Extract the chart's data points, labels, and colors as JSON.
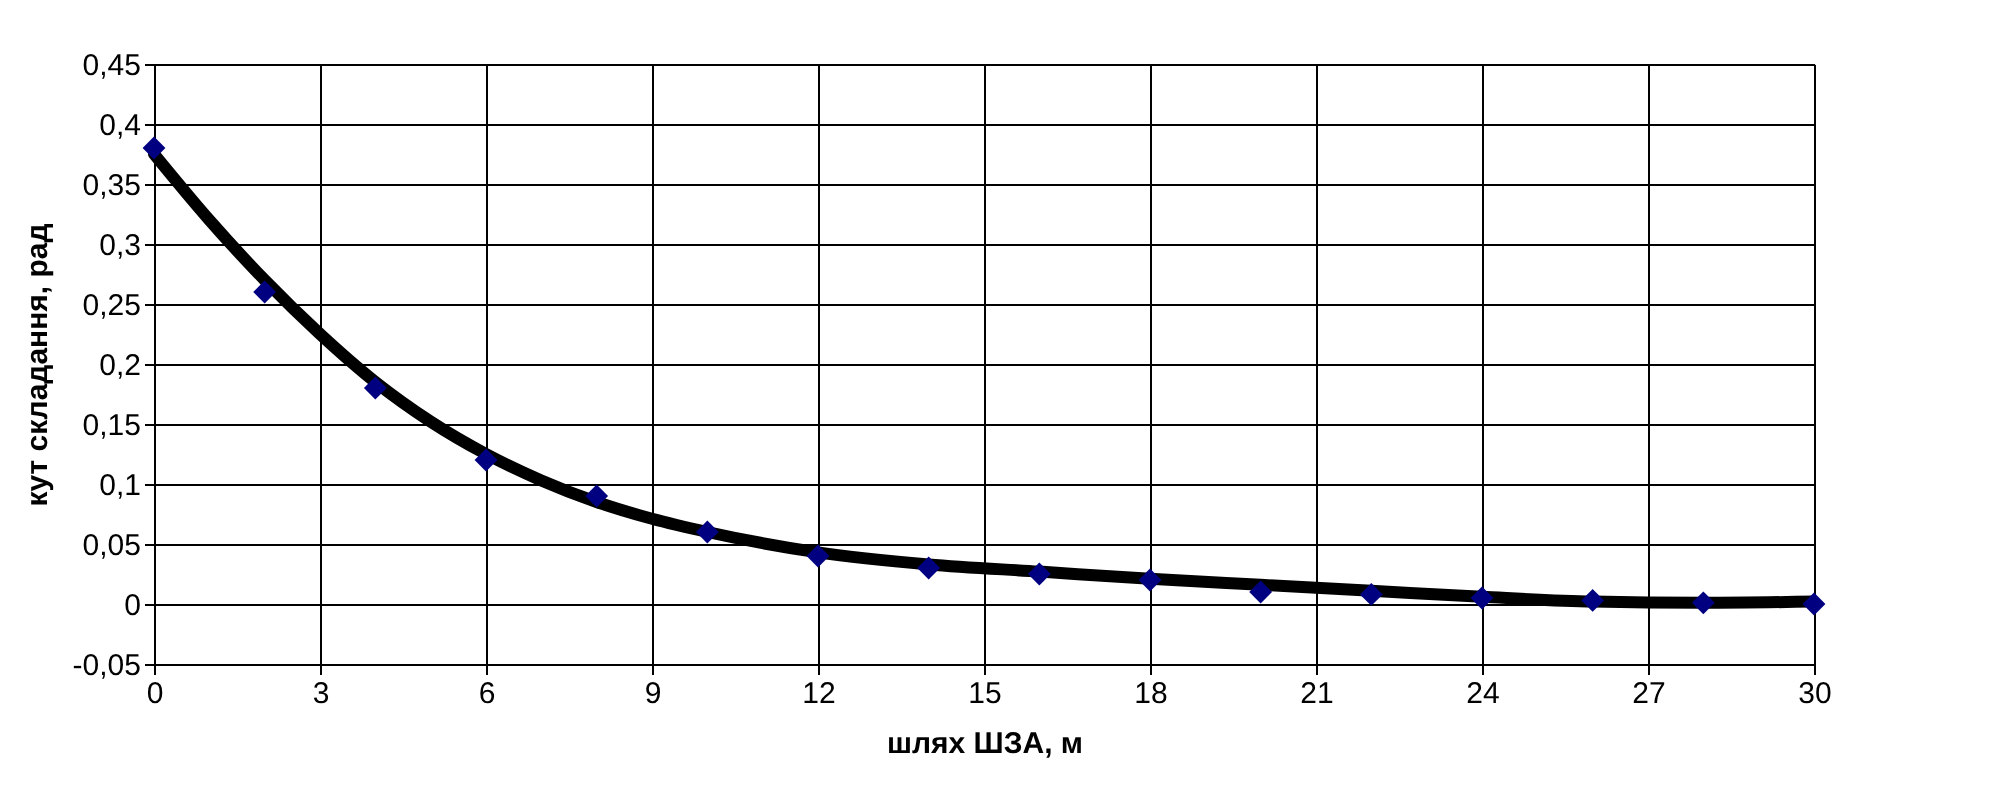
{
  "chart_data": {
    "type": "scatter",
    "xlabel": "шлях ШЗА, м",
    "ylabel": "кут складання, рад",
    "x": [
      0,
      2,
      4,
      6,
      8,
      10,
      12,
      14,
      16,
      18,
      20,
      22,
      24,
      26,
      28,
      30
    ],
    "series": [
      {
        "type": "scatter",
        "color": "#000080",
        "marker": "diamond",
        "values": [
          0.38,
          0.26,
          0.18,
          0.12,
          0.09,
          0.06,
          0.04,
          0.03,
          0.025,
          0.02,
          0.01,
          0.008,
          0.005,
          0.003,
          0.001,
          0.0
        ]
      },
      {
        "type": "line",
        "color": "#000000",
        "line_style": "solid",
        "x": [
          0,
          1,
          2,
          3,
          4,
          5,
          6,
          7,
          8,
          9,
          10,
          12,
          14,
          16,
          18,
          20,
          22,
          24,
          26,
          28,
          30
        ],
        "values": [
          0.375,
          0.32,
          0.27,
          0.225,
          0.185,
          0.152,
          0.125,
          0.103,
          0.085,
          0.071,
          0.06,
          0.043,
          0.033,
          0.027,
          0.021,
          0.016,
          0.011,
          0.006,
          0.002,
          0.001,
          0.002
        ]
      }
    ],
    "xlim": [
      0,
      30
    ],
    "xticks": [
      0,
      3,
      6,
      9,
      12,
      15,
      18,
      21,
      24,
      27,
      30
    ],
    "ylim": [
      -0.05,
      0.45
    ],
    "yticks": [
      {
        "value": -0.05,
        "label": "-0,05"
      },
      0,
      {
        "value": 0.05,
        "label": "0,05"
      },
      {
        "value": 0.1,
        "label": "0,1"
      },
      {
        "value": 0.15,
        "label": "0,15"
      },
      {
        "value": 0.2,
        "label": "0,2"
      },
      {
        "value": 0.25,
        "label": "0,25"
      },
      {
        "value": 0.3,
        "label": "0,3"
      },
      {
        "value": 0.35,
        "label": "0,35"
      },
      {
        "value": 0.4,
        "label": "0,4"
      },
      {
        "value": 0.45,
        "label": "0,45"
      }
    ],
    "grid": true
  }
}
